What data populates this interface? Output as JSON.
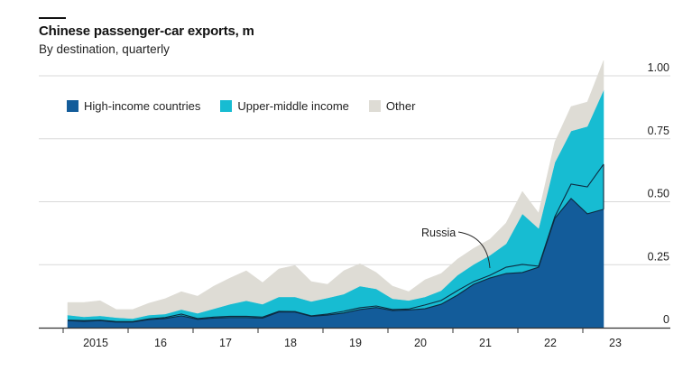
{
  "chart_data": {
    "type": "area",
    "stacked": true,
    "title": "Chinese passenger-car exports, m",
    "subtitle": "By destination, quarterly",
    "xlabel": "",
    "ylabel": "",
    "ylim": [
      0,
      1.0
    ],
    "y_ticks": [
      "0",
      "0.25",
      "0.50",
      "0.75",
      "1.00"
    ],
    "y_tick_values": [
      0,
      0.25,
      0.5,
      0.75,
      1.0
    ],
    "y_axis_side": "right",
    "grid": true,
    "x_tick_labels": [
      "2015",
      "16",
      "17",
      "18",
      "19",
      "20",
      "21",
      "22",
      "23"
    ],
    "x": [
      "2015Q1",
      "2015Q2",
      "2015Q3",
      "2015Q4",
      "2016Q1",
      "2016Q2",
      "2016Q3",
      "2016Q4",
      "2017Q1",
      "2017Q2",
      "2017Q3",
      "2017Q4",
      "2018Q1",
      "2018Q2",
      "2018Q3",
      "2018Q4",
      "2019Q1",
      "2019Q2",
      "2019Q3",
      "2019Q4",
      "2020Q1",
      "2020Q2",
      "2020Q3",
      "2020Q4",
      "2021Q1",
      "2021Q2",
      "2021Q3",
      "2021Q4",
      "2022Q1",
      "2022Q2",
      "2022Q3",
      "2022Q4",
      "2023Q1",
      "2023Q2"
    ],
    "legend_position": "top-left",
    "series": [
      {
        "name": "High-income countries",
        "color": "#135c9a",
        "values": [
          0.028,
          0.025,
          0.028,
          0.022,
          0.022,
          0.032,
          0.036,
          0.047,
          0.033,
          0.038,
          0.04,
          0.04,
          0.038,
          0.062,
          0.062,
          0.045,
          0.05,
          0.058,
          0.072,
          0.08,
          0.068,
          0.07,
          0.075,
          0.093,
          0.129,
          0.172,
          0.197,
          0.215,
          0.219,
          0.24,
          0.434,
          0.513,
          0.452,
          0.47
        ]
      },
      {
        "name": "Upper-middle income",
        "color": "#17bcd2",
        "values": [
          0.022,
          0.018,
          0.019,
          0.018,
          0.014,
          0.018,
          0.018,
          0.025,
          0.024,
          0.037,
          0.053,
          0.067,
          0.055,
          0.06,
          0.06,
          0.059,
          0.068,
          0.075,
          0.093,
          0.074,
          0.047,
          0.038,
          0.047,
          0.054,
          0.079,
          0.079,
          0.09,
          0.118,
          0.233,
          0.154,
          0.222,
          0.268,
          0.347,
          0.473
        ]
      },
      {
        "name": "Other",
        "color": "#dedcd5",
        "values": [
          0.05,
          0.057,
          0.06,
          0.032,
          0.036,
          0.047,
          0.061,
          0.071,
          0.068,
          0.09,
          0.104,
          0.119,
          0.086,
          0.111,
          0.125,
          0.079,
          0.054,
          0.093,
          0.089,
          0.065,
          0.05,
          0.035,
          0.068,
          0.068,
          0.064,
          0.064,
          0.064,
          0.083,
          0.089,
          0.061,
          0.082,
          0.097,
          0.097,
          0.118
        ]
      }
    ],
    "sub_series": {
      "name": "Russia",
      "part_of": "Upper-middle income",
      "values": [
        0.002,
        0.003,
        0.002,
        0.002,
        0.002,
        0.003,
        0.004,
        0.007,
        0.003,
        0.004,
        0.005,
        0.005,
        0.004,
        0.003,
        0.002,
        0.002,
        0.004,
        0.007,
        0.007,
        0.006,
        0.004,
        0.004,
        0.015,
        0.015,
        0.018,
        0.011,
        0.011,
        0.025,
        0.032,
        0.004,
        0.007,
        0.057,
        0.107,
        0.179
      ]
    },
    "annotations": [
      {
        "text": "Russia",
        "points_to": "Russia sub-series, 2021Q3"
      }
    ]
  }
}
